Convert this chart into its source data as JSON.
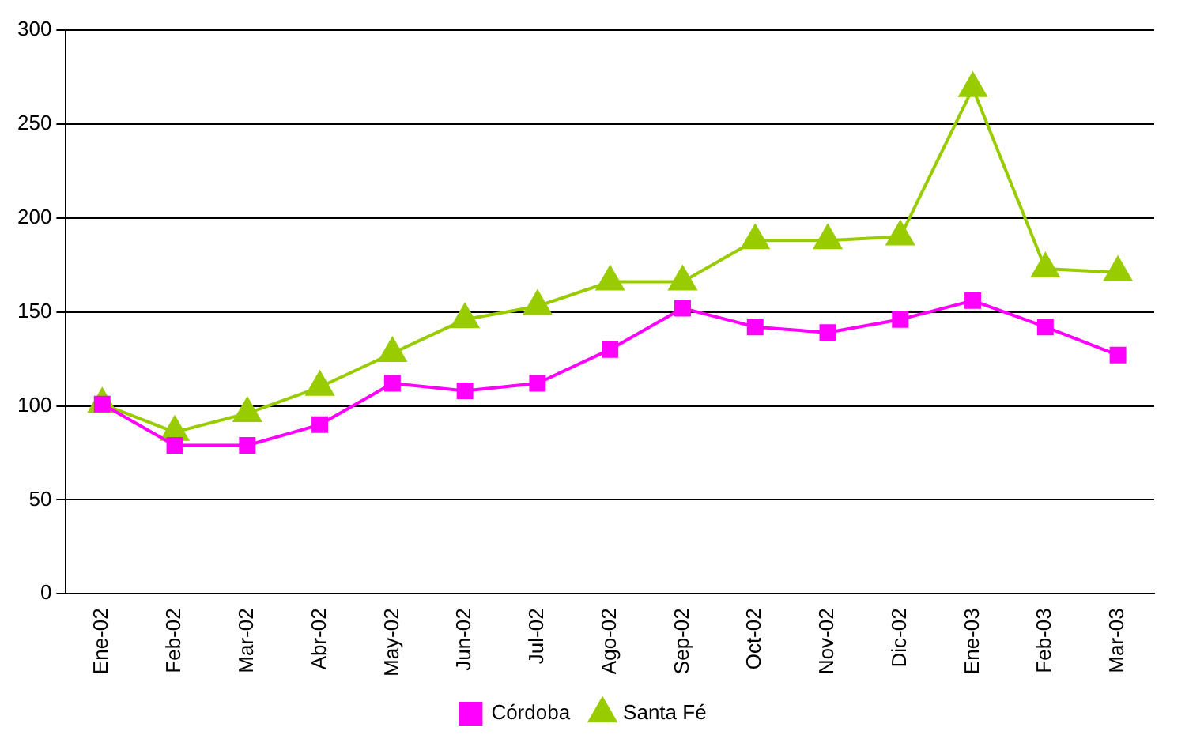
{
  "chart_data": {
    "type": "line",
    "categories": [
      "Ene-02",
      "Feb-02",
      "Mar-02",
      "Abr-02",
      "May-02",
      "Jun-02",
      "Jul-02",
      "Ago-02",
      "Sep-02",
      "Oct-02",
      "Nov-02",
      "Dic-02",
      "Ene-03",
      "Feb-03",
      "Mar-03"
    ],
    "series": [
      {
        "name": "Córdoba",
        "color": "#ff00ff",
        "marker": "square",
        "values": [
          101,
          79,
          79,
          90,
          112,
          108,
          112,
          130,
          152,
          142,
          139,
          146,
          156,
          142,
          127
        ]
      },
      {
        "name": "Santa Fé",
        "color": "#99cc00",
        "marker": "triangle",
        "values": [
          101,
          86,
          96,
          110,
          128,
          146,
          153,
          166,
          166,
          188,
          188,
          190,
          269,
          173,
          171
        ]
      }
    ],
    "ylim": [
      0,
      300
    ],
    "yticks": [
      0,
      50,
      100,
      150,
      200,
      250,
      300
    ],
    "grid": "y",
    "line_style": "solid",
    "legend": "bottom"
  }
}
